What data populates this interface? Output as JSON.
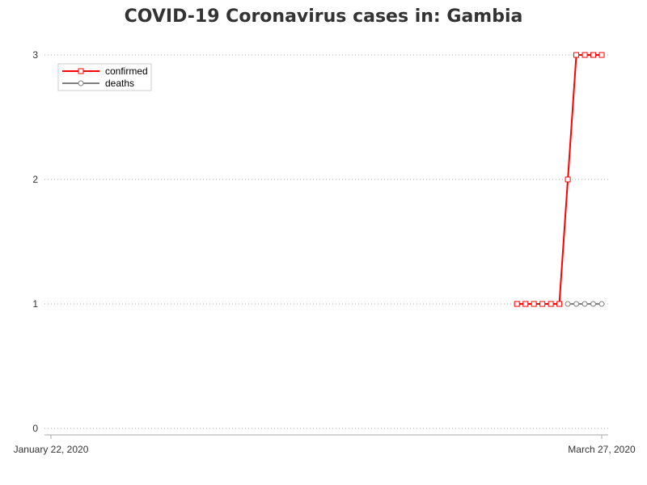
{
  "chart_data": {
    "type": "line",
    "title": "COVID-19 Coronavirus cases in: Gambia",
    "xlabel": "",
    "ylabel": "",
    "x_start": "2020-01-22",
    "x_end": "2020-03-27",
    "x_tick_labels": [
      "January 22, 2020",
      "March 27, 2020"
    ],
    "ylim": [
      0,
      3
    ],
    "y_ticks": [
      0,
      1,
      2,
      3
    ],
    "grid": "horizontal dotted",
    "legend_placement": "top-left",
    "series": [
      {
        "name": "confirmed",
        "color": "#ff0000",
        "marker": "square",
        "points": [
          {
            "x": "2020-03-17",
            "y": 1
          },
          {
            "x": "2020-03-18",
            "y": 1
          },
          {
            "x": "2020-03-19",
            "y": 1
          },
          {
            "x": "2020-03-20",
            "y": 1
          },
          {
            "x": "2020-03-21",
            "y": 1
          },
          {
            "x": "2020-03-22",
            "y": 1
          },
          {
            "x": "2020-03-23",
            "y": 2
          },
          {
            "x": "2020-03-24",
            "y": 3
          },
          {
            "x": "2020-03-25",
            "y": 3
          },
          {
            "x": "2020-03-26",
            "y": 3
          },
          {
            "x": "2020-03-27",
            "y": 3
          }
        ]
      },
      {
        "name": "deaths",
        "color": "#808080",
        "marker": "circle",
        "points": [
          {
            "x": "2020-03-23",
            "y": 1
          },
          {
            "x": "2020-03-24",
            "y": 1
          },
          {
            "x": "2020-03-25",
            "y": 1
          },
          {
            "x": "2020-03-26",
            "y": 1
          },
          {
            "x": "2020-03-27",
            "y": 1
          }
        ]
      }
    ]
  }
}
